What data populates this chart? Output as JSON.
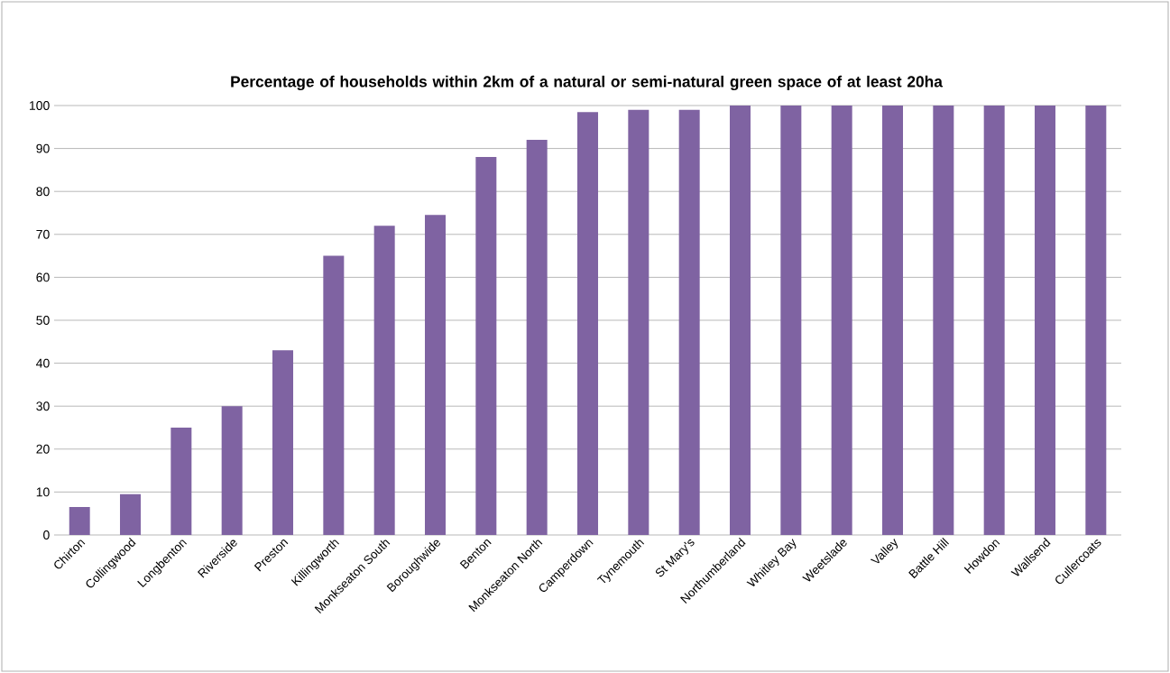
{
  "chart_data": {
    "type": "bar",
    "title": "Percentage of households within 2km of a natural or semi-natural green space of at least 20ha",
    "categories": [
      "Chirton",
      "Collingwood",
      "Longbenton",
      "Riverside",
      "Preston",
      "Killingworth",
      "Monkseaton South",
      "Boroughwide",
      "Benton",
      "Monkseaton North",
      "Camperdown",
      "Tynemouth",
      "St Mary's",
      "Northumberland",
      "Whitley Bay",
      "Weetslade",
      "Valley",
      "Battle Hill",
      "Howdon",
      "Wallsend",
      "Cullercoats"
    ],
    "values": [
      6.5,
      9.5,
      25,
      30,
      43,
      65,
      72,
      74.5,
      88,
      92,
      98.5,
      99,
      99,
      100,
      100,
      100,
      100,
      100,
      100,
      100,
      100
    ],
    "color": "#7f63a2",
    "ylim": [
      0,
      100
    ],
    "yticks": [
      0,
      10,
      20,
      30,
      40,
      50,
      60,
      70,
      80,
      90,
      100
    ],
    "grid": "y"
  }
}
